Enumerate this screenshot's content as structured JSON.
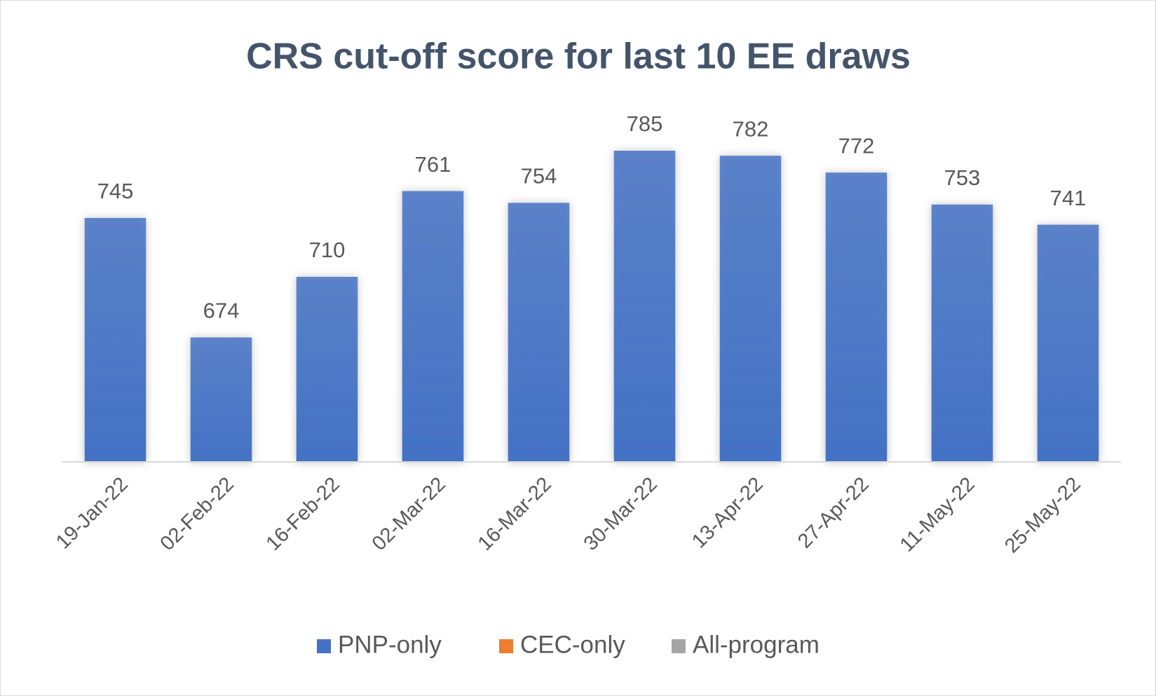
{
  "chart_data": {
    "type": "bar",
    "title": "CRS cut-off score for last 10 EE draws",
    "categories": [
      "19-Jan-22",
      "02-Feb-22",
      "16-Feb-22",
      "02-Mar-22",
      "16-Mar-22",
      "30-Mar-22",
      "13-Apr-22",
      "27-Apr-22",
      "11-May-22",
      "25-May-22"
    ],
    "series": [
      {
        "name": "PNP-only",
        "color": "#4472c4",
        "values": [
          745,
          674,
          710,
          761,
          754,
          785,
          782,
          772,
          753,
          741
        ]
      },
      {
        "name": "CEC-only",
        "color": "#ed7d31",
        "values": [
          null,
          null,
          null,
          null,
          null,
          null,
          null,
          null,
          null,
          null
        ]
      },
      {
        "name": "All-program",
        "color": "#a5a5a5",
        "values": [
          null,
          null,
          null,
          null,
          null,
          null,
          null,
          null,
          null,
          null
        ]
      }
    ],
    "ylim": [
      600,
      800
    ],
    "legend": "bottom"
  }
}
